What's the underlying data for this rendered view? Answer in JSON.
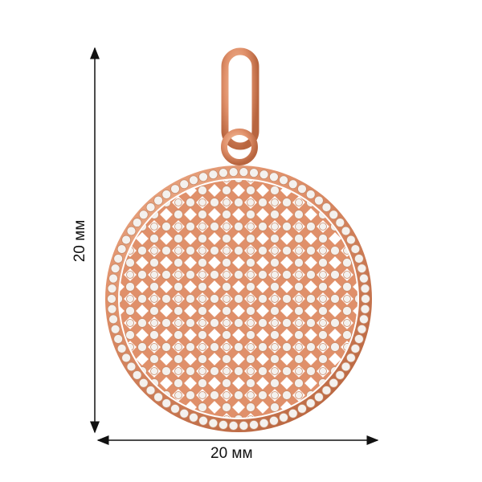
{
  "dimensions": {
    "height_label": "20 мм",
    "width_label": "20 мм"
  },
  "colors": {
    "gold": "#e0906a",
    "stone": "#f4f1ee",
    "arrow": "#111111"
  }
}
